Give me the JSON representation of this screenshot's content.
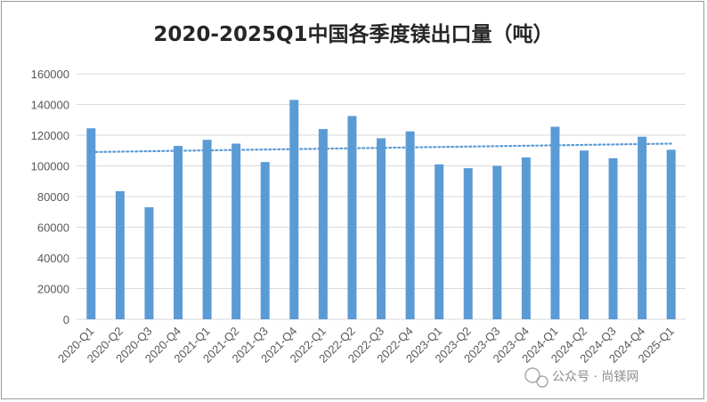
{
  "chart_data": {
    "type": "bar",
    "title": "2020-2025Q1中国各季度镁出口量（吨）",
    "categories": [
      "2020-Q1",
      "2020-Q2",
      "2020-Q3",
      "2020-Q4",
      "2021-Q1",
      "2021-Q2",
      "2021-Q3",
      "2021-Q4",
      "2022-Q1",
      "2022-Q2",
      "2022-Q3",
      "2022-Q4",
      "2023-Q1",
      "2023-Q2",
      "2023-Q3",
      "2023-Q4",
      "2024-Q1",
      "2024-Q2",
      "2024-Q3",
      "2024-Q4",
      "2025-Q1"
    ],
    "values": [
      124500,
      83500,
      73000,
      113000,
      117000,
      114500,
      102500,
      143000,
      124000,
      132500,
      118000,
      122500,
      101000,
      98500,
      100000,
      105500,
      125500,
      110000,
      105000,
      119000,
      110500
    ],
    "trendline": {
      "type": "linear",
      "start": 109000,
      "end": 114500,
      "style": "dotted"
    },
    "ylim": [
      0,
      160000
    ],
    "yticks": [
      0,
      20000,
      40000,
      60000,
      80000,
      100000,
      120000,
      140000,
      160000
    ],
    "ytick_labels": [
      "0",
      "20000",
      "40000",
      "60000",
      "80000",
      "100000",
      "120000",
      "140000",
      "160000"
    ],
    "xlabel": "",
    "ylabel": "",
    "grid": "horizontal",
    "legend": "none",
    "colors": {
      "bar": "#5b9bd5",
      "trendline": "#5b9bd5",
      "grid": "#d9d9d9"
    }
  },
  "watermark": {
    "text": "公众号 · 尚镁网"
  }
}
